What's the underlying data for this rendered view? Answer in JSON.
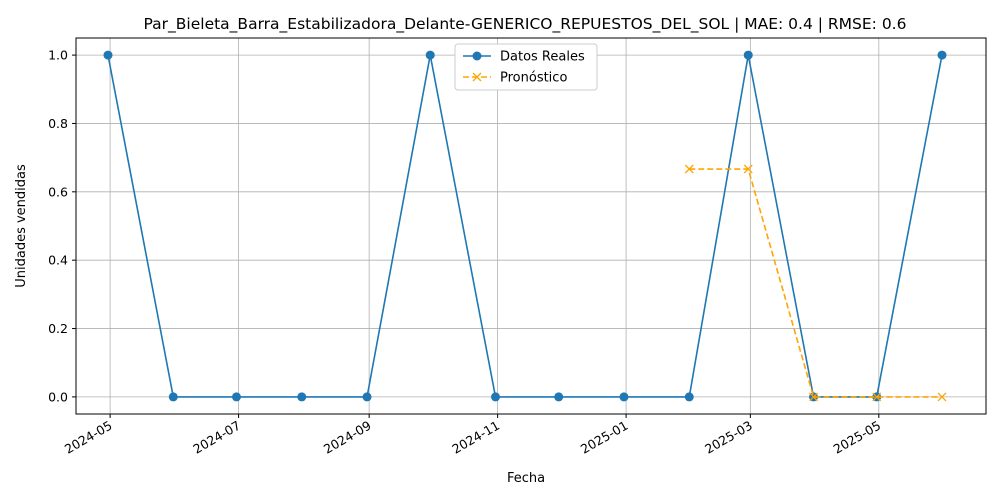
{
  "chart_data": {
    "type": "line",
    "title": "Par_Bieleta_Barra_Estabilizadora_Delante-GENERICO_REPUESTOS_DEL_SOL | MAE: 0.4 | RMSE: 0.6",
    "xlabel": "Fecha",
    "ylabel": "Unidades vendidas",
    "ylim": [
      -0.05,
      1.05
    ],
    "x_ticks": [
      "2024-05",
      "2024-07",
      "2024-09",
      "2024-11",
      "2025-01",
      "2025-03",
      "2025-05"
    ],
    "y_ticks": [
      "0.0",
      "0.2",
      "0.4",
      "0.6",
      "0.8",
      "1.0"
    ],
    "y_tick_values": [
      0.0,
      0.2,
      0.4,
      0.6,
      0.8,
      1.0
    ],
    "grid": true,
    "legend_position": "top-center",
    "series": [
      {
        "name": "Datos Reales",
        "color": "#1f77b4",
        "marker": "circle",
        "line_style": "solid",
        "points": [
          {
            "x": "2024-04-30",
            "y": 1
          },
          {
            "x": "2024-05-31",
            "y": 0
          },
          {
            "x": "2024-06-30",
            "y": 0
          },
          {
            "x": "2024-07-31",
            "y": 0
          },
          {
            "x": "2024-08-31",
            "y": 0
          },
          {
            "x": "2024-09-30",
            "y": 1
          },
          {
            "x": "2024-10-31",
            "y": 0
          },
          {
            "x": "2024-11-30",
            "y": 0
          },
          {
            "x": "2024-12-31",
            "y": 0
          },
          {
            "x": "2025-01-31",
            "y": 0
          },
          {
            "x": "2025-02-28",
            "y": 1
          },
          {
            "x": "2025-03-31",
            "y": 0
          },
          {
            "x": "2025-04-30",
            "y": 0
          },
          {
            "x": "2025-05-31",
            "y": 1
          }
        ]
      },
      {
        "name": "Pronóstico",
        "color": "#ffa500",
        "marker": "x",
        "line_style": "dashed",
        "points": [
          {
            "x": "2025-01-31",
            "y": 0.6667
          },
          {
            "x": "2025-02-28",
            "y": 0.6667
          },
          {
            "x": "2025-03-31",
            "y": 0
          },
          {
            "x": "2025-04-30",
            "y": 0
          },
          {
            "x": "2025-05-31",
            "y": 0
          }
        ]
      }
    ]
  }
}
